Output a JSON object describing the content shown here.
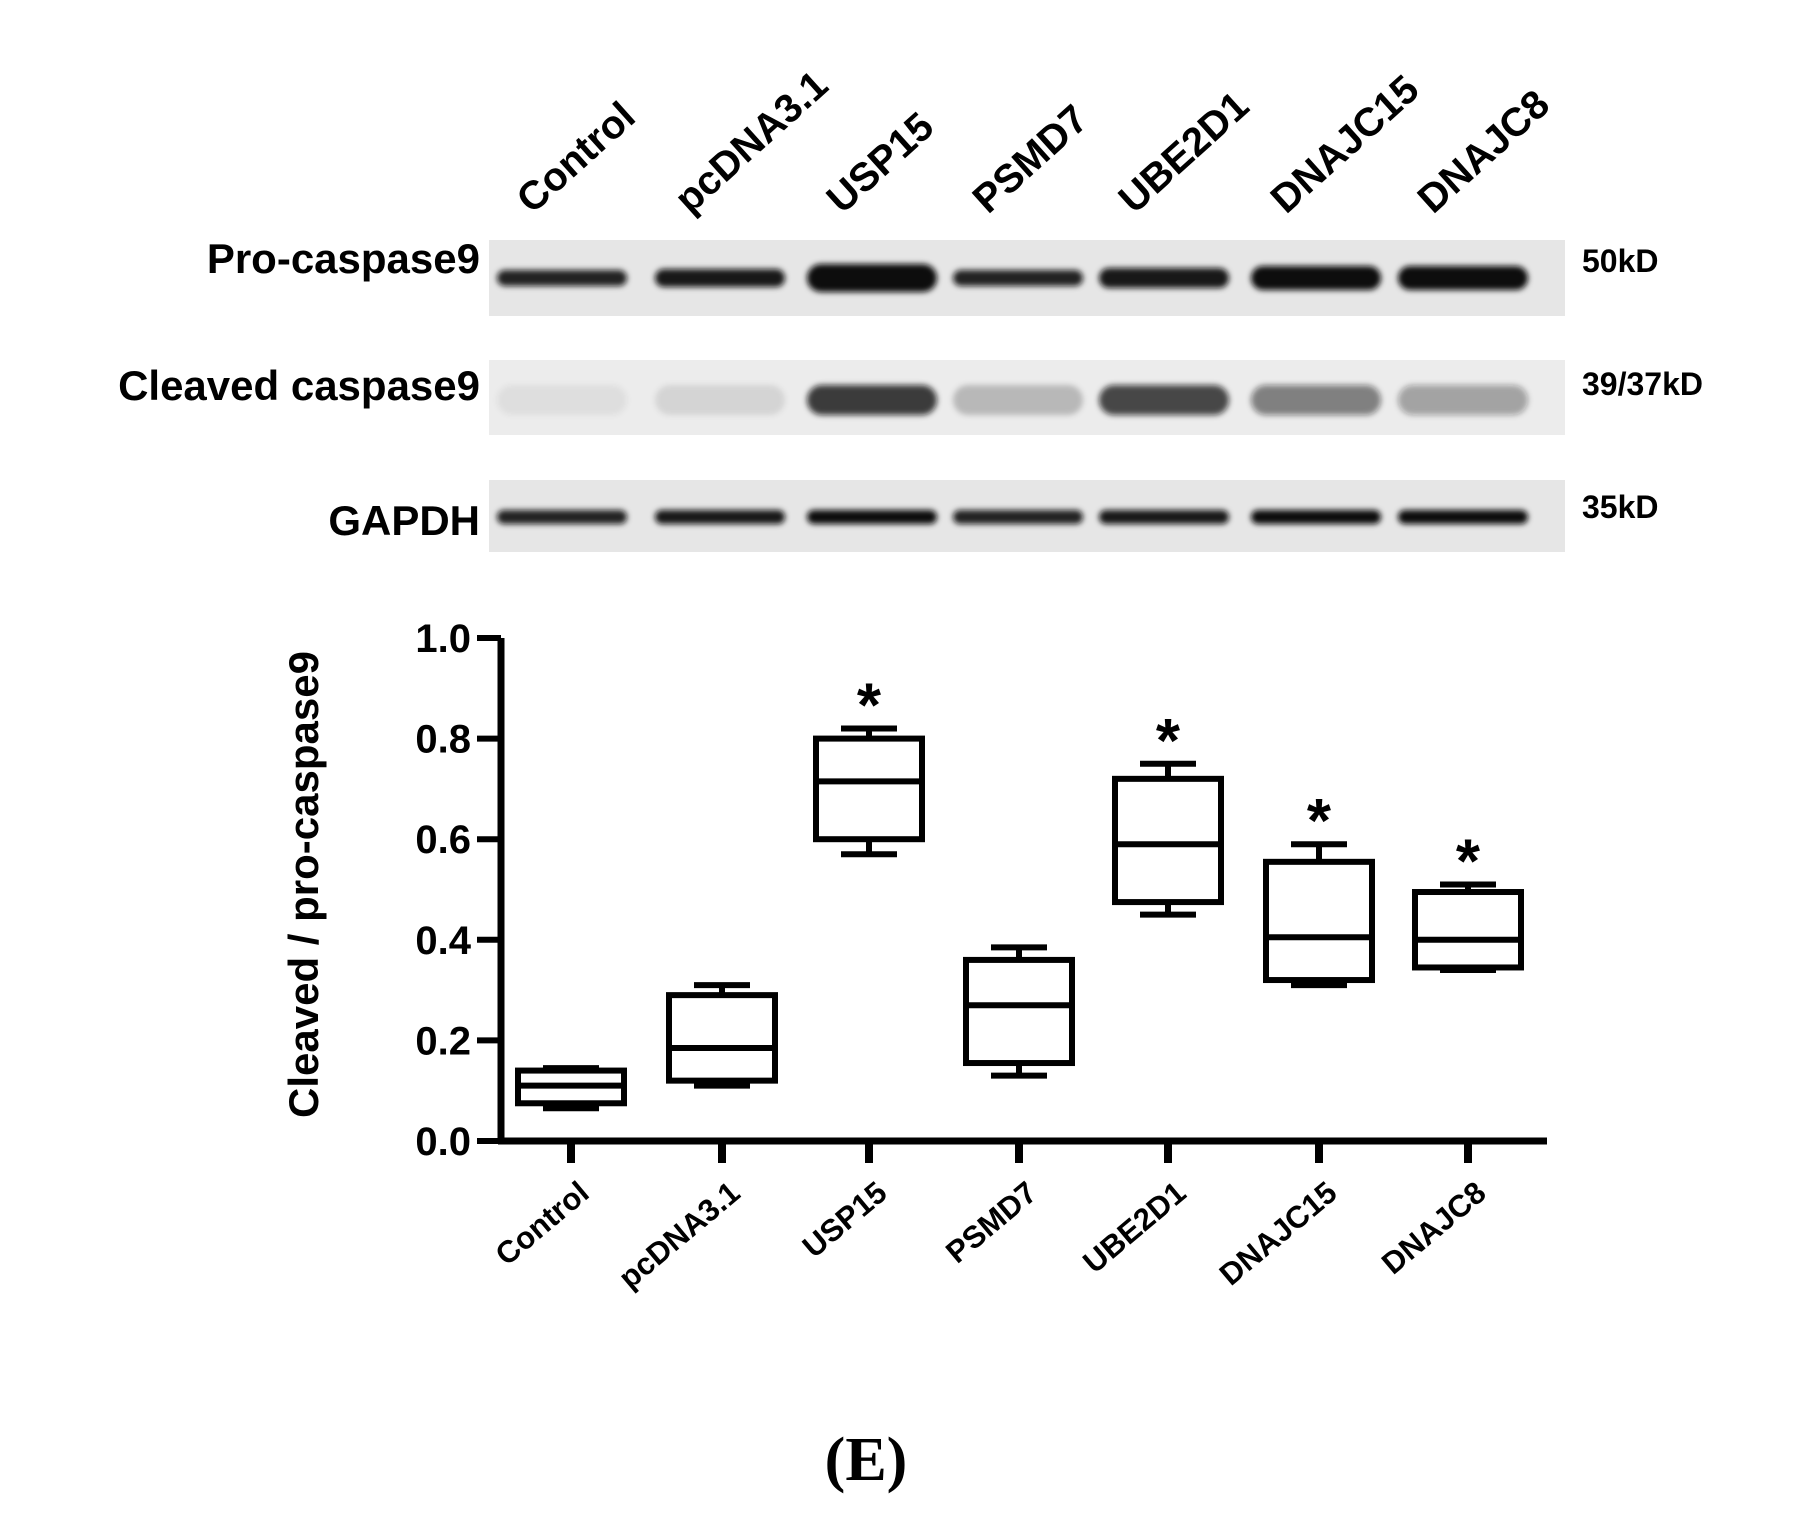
{
  "blot": {
    "lanes": [
      "Control",
      "pcDNA3.1",
      "USP15",
      "PSMD7",
      "UBE2D1",
      "DNAJC15",
      "DNAJC8"
    ],
    "rows": [
      {
        "name": "Pro-caspase9",
        "size": "50kD"
      },
      {
        "name": "Cleaved caspase9",
        "size": "39/37kD"
      },
      {
        "name": "GAPDH",
        "size": "35kD"
      }
    ]
  },
  "chart_data": {
    "type": "box",
    "y_label": "Cleaved / pro-caspase9",
    "categories": [
      "Control",
      "pcDNA3.1",
      "USP15",
      "PSMD7",
      "UBE2D1",
      "DNAJC15",
      "DNAJC8"
    ],
    "min": [
      0.065,
      0.11,
      0.57,
      0.13,
      0.45,
      0.31,
      0.34
    ],
    "q1": [
      0.075,
      0.12,
      0.6,
      0.155,
      0.475,
      0.32,
      0.345
    ],
    "median": [
      0.11,
      0.185,
      0.715,
      0.27,
      0.59,
      0.405,
      0.4
    ],
    "q3": [
      0.14,
      0.29,
      0.8,
      0.36,
      0.72,
      0.555,
      0.495
    ],
    "max": [
      0.145,
      0.31,
      0.82,
      0.385,
      0.75,
      0.59,
      0.51
    ],
    "color": "#000000",
    "ylim": [
      0,
      1
    ],
    "yticks": [
      {
        "value": 0,
        "label": "0.0"
      },
      0.2,
      0.4,
      0.6,
      0.8,
      {
        "value": 1,
        "label": "1.0"
      }
    ],
    "annotations": [
      {
        "text": "*",
        "category": "USP15"
      },
      {
        "text": "*",
        "category": "UBE2D1"
      },
      {
        "text": "*",
        "category": "DNAJC15"
      },
      {
        "text": "*",
        "category": "DNAJC8"
      }
    ]
  },
  "panel_label": "(E)"
}
